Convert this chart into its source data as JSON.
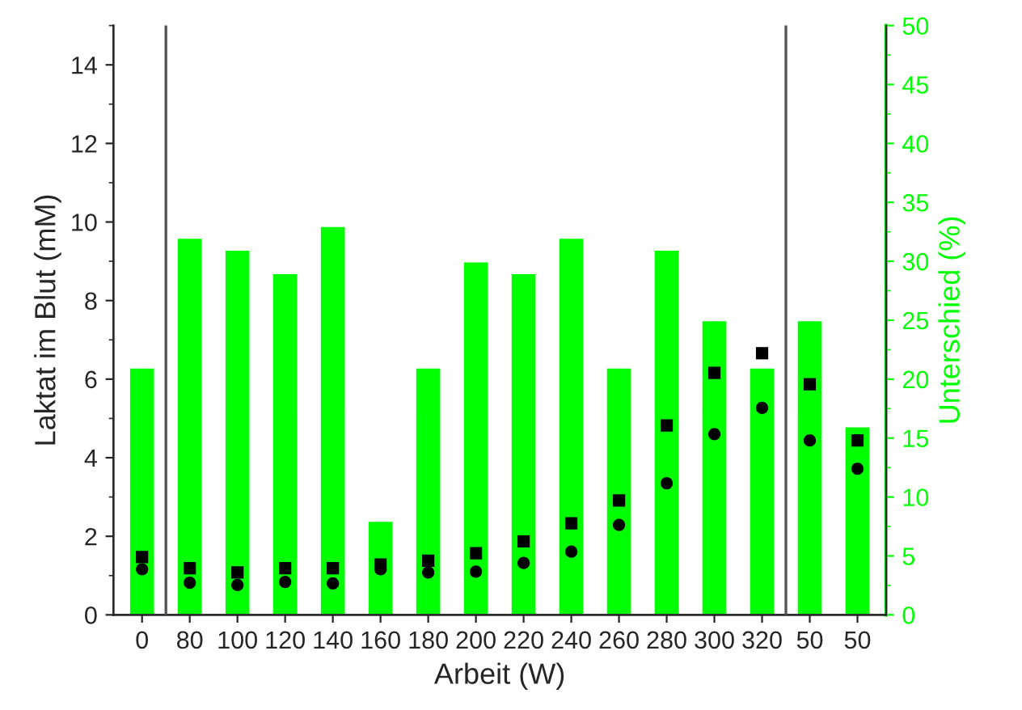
{
  "chart_data": {
    "type": "bar",
    "xlabel": "Arbeit (W)",
    "ylabel": "Laktat im Blut (mM)",
    "y2label": "Unterschied (%)",
    "categories": [
      "0",
      "80",
      "100",
      "120",
      "140",
      "160",
      "180",
      "200",
      "220",
      "240",
      "260",
      "280",
      "300",
      "320",
      "50",
      "50"
    ],
    "series": [
      {
        "axis": "y2",
        "color": "#00ff00",
        "values": [
          21,
          32,
          31,
          29,
          33,
          8,
          21,
          30,
          29,
          32,
          21,
          31,
          25,
          21,
          25,
          16
        ]
      },
      {
        "type": "scatter",
        "axis": "y",
        "color": "#000000",
        "marker": "square",
        "values": [
          1.47,
          1.19,
          1.08,
          1.19,
          1.19,
          1.28,
          1.38,
          1.57,
          1.87,
          2.33,
          2.91,
          4.82,
          6.16,
          6.66,
          5.87,
          4.44
        ]
      },
      {
        "type": "scatter",
        "axis": "y",
        "color": "#000000",
        "marker": "circle",
        "values": [
          1.16,
          0.82,
          0.76,
          0.84,
          0.8,
          1.16,
          1.08,
          1.1,
          1.32,
          1.61,
          2.29,
          3.35,
          4.6,
          5.27,
          4.44,
          3.72
        ]
      }
    ],
    "ylim": [
      0,
      15
    ],
    "yticks": [
      0,
      2,
      4,
      6,
      8,
      10,
      12,
      14
    ],
    "y2lim": [
      0,
      50
    ],
    "y2ticks": [
      0,
      5,
      10,
      15,
      20,
      25,
      30,
      35,
      40,
      45,
      50
    ],
    "grid": false,
    "legend": false
  }
}
